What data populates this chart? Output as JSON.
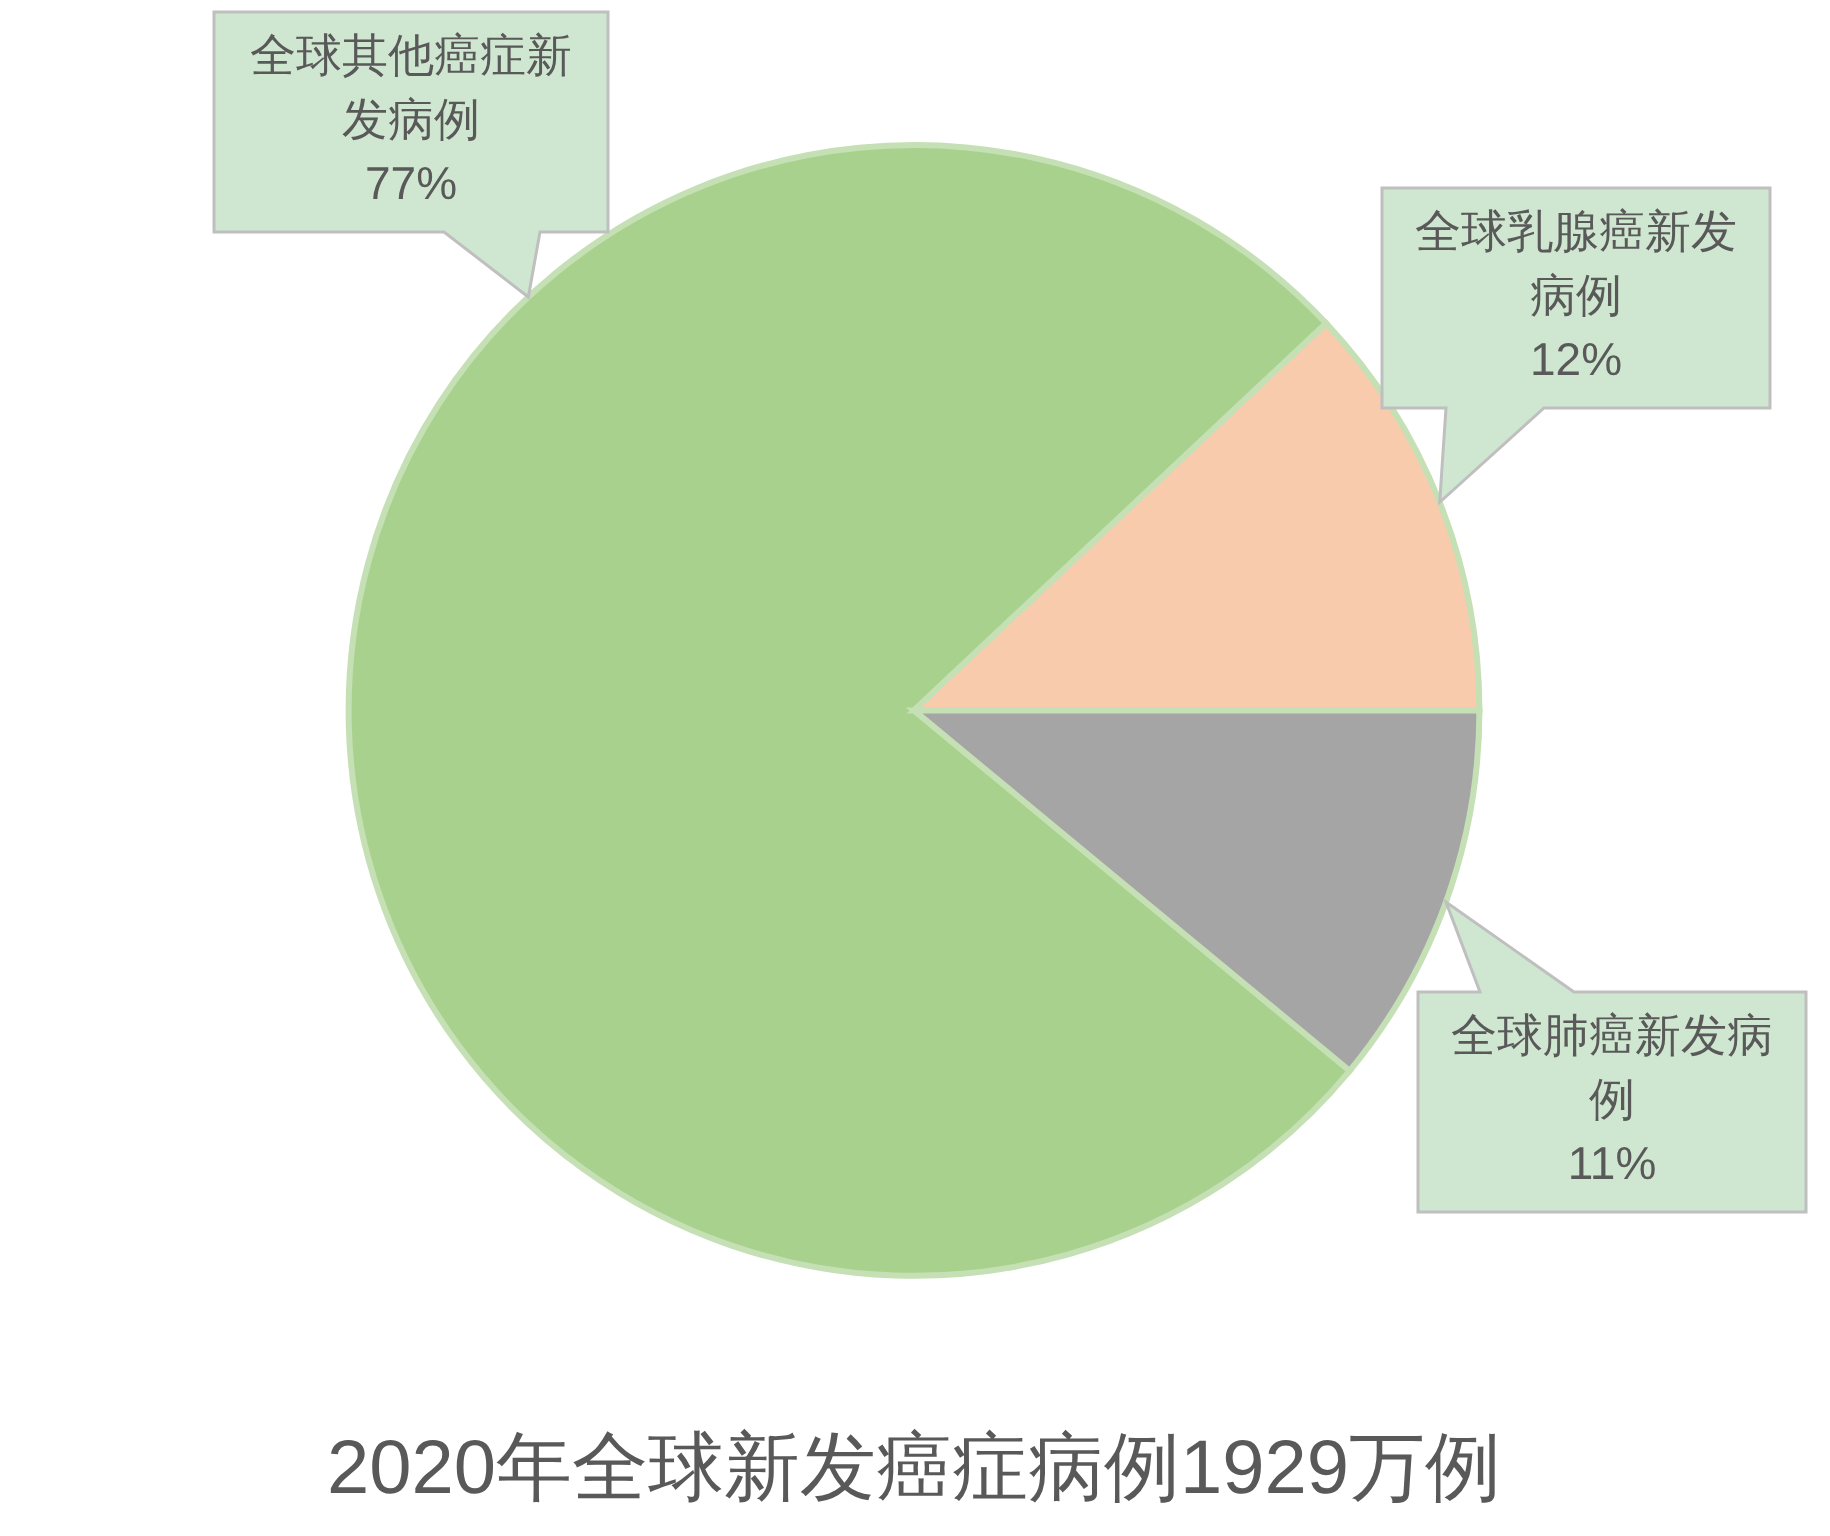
{
  "chart_data": {
    "type": "pie",
    "title": "2020年全球新发癌症病例1929万例",
    "categories": [
      "全球其他癌症新发病例",
      "全球乳腺癌新发病例",
      "全球肺癌新发病例"
    ],
    "values": [
      77,
      12,
      11
    ],
    "colors": [
      "#a9d18e",
      "#f8cbad",
      "#a5a5a5"
    ],
    "value_labels": [
      "77%",
      "12%",
      "11%"
    ]
  }
}
